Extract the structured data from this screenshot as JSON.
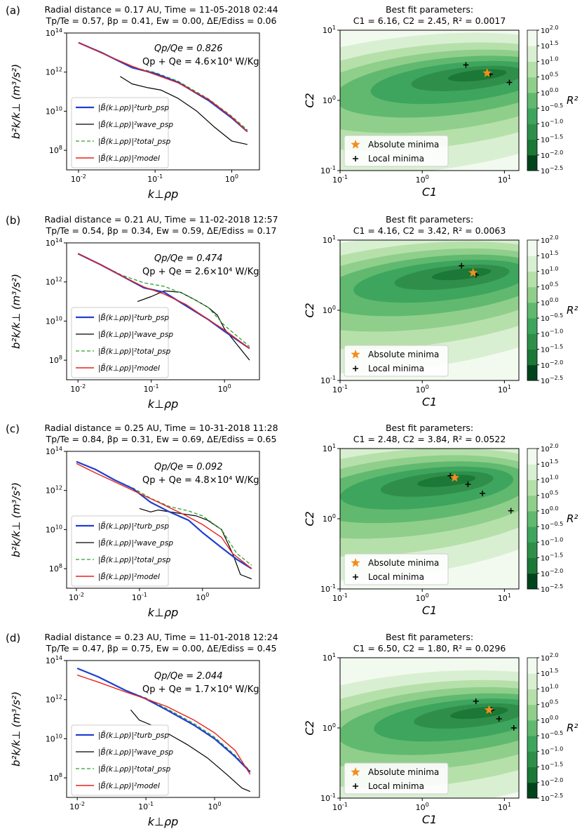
{
  "colors": {
    "turb": "#1f3fd1",
    "wave": "#000000",
    "total": "#2ca02c",
    "model": "#e8221c",
    "star": "#f28e1c",
    "contour": [
      "#00441b",
      "#1b7837",
      "#2f8f4a",
      "#3ea55e",
      "#60b96f",
      "#8fcf8b",
      "#b6e0aa",
      "#d9efd2",
      "#f2faef"
    ]
  },
  "legend_left": {
    "turb": "|B̃(k⊥ρp)|²turb_psp",
    "wave": "|B̃(k⊥ρp)|²wave_psp",
    "total": "|B̃(k⊥ρp)|²total_psp",
    "model": "|B̃(k⊥ρp)|²model"
  },
  "legend_right": {
    "absolute": "Absolute minima",
    "local": "Local minima"
  },
  "axis_labels": {
    "left_x": "k⊥ρp",
    "left_y": "b²k/k⊥ (m³/s²)",
    "right_x": "C1",
    "right_y": "C2",
    "colorbar": "R²"
  },
  "colorbar_ticks": [
    "10^2.0",
    "10^1.5",
    "10^1.0",
    "10^0.5",
    "10^0.0",
    "10^−0.5",
    "10^−1.0",
    "10^−1.5",
    "10^−2.0",
    "10^−2.5"
  ],
  "chart_data": [
    {
      "id": "a",
      "type": "line",
      "panel_label": "(a)",
      "title_line1": "Radial distance = 0.17 AU,    Time = 11-05-2018 02:44",
      "title_line2": "Tp/Te = 0.57,  βp = 0.41,  Ew = 0.00,  ΔE/Ediss = 0.06",
      "ratio_text": "Qp/Qe = 0.826",
      "heat_text": "Qp + Qe = 4.6×10⁴ W/Kg",
      "xlabel": "k⊥ρp",
      "ylabel": "b²k/k⊥ (m³/s²)",
      "xscale": "log",
      "yscale": "log",
      "xlim": [
        0.007,
        2.3
      ],
      "ylim": [
        10000000.0,
        100000000000000.0
      ],
      "xticks": [
        "10^-2",
        "10^-1",
        "10^0"
      ],
      "yticks": [
        "10^8",
        "10^10",
        "10^12",
        "10^14"
      ],
      "series": [
        {
          "name": "turb_psp",
          "x": [
            0.01,
            0.02,
            0.05,
            0.1,
            0.2,
            0.5,
            1.0,
            1.6
          ],
          "y": [
            32000000000000.0,
            10000000000000.0,
            1700000000000.0,
            850000000000.0,
            300000000000.0,
            35000000000.0,
            4500000000.0,
            900000000.0
          ]
        },
        {
          "name": "wave_psp",
          "x": [
            0.035,
            0.05,
            0.08,
            0.12,
            0.2,
            0.35,
            0.6,
            1.0,
            1.6
          ],
          "y": [
            600000000000.0,
            250000000000.0,
            160000000000.0,
            120000000000.0,
            45000000000.0,
            10000000000.0,
            1500000000.0,
            300000000.0,
            200000000.0
          ]
        },
        {
          "name": "total_psp",
          "x": [
            0.01,
            0.02,
            0.05,
            0.1,
            0.2,
            0.5,
            1.0,
            1.6
          ],
          "y": [
            32000000000000.0,
            10000000000000.0,
            1800000000000.0,
            950000000000.0,
            340000000000.0,
            42000000000.0,
            5500000000.0,
            1100000000.0
          ]
        },
        {
          "name": "model",
          "x": [
            0.01,
            0.02,
            0.05,
            0.1,
            0.2,
            0.5,
            1.0,
            1.6
          ],
          "y": [
            32000000000000.0,
            9500000000000.0,
            2000000000000.0,
            750000000000.0,
            280000000000.0,
            40000000000.0,
            5000000000.0,
            900000000.0
          ]
        }
      ],
      "fit": {
        "title_line1": "Best fit parameters:",
        "title_line2": "C1 = 6.16,   C2 = 2.45,   R² = 0.0017",
        "xlim": [
          0.1,
          15
        ],
        "ylim": [
          0.1,
          10
        ],
        "xticks": [
          "10^-1",
          "10^0",
          "10^1"
        ],
        "yticks": [
          "10^-1",
          "10^0",
          "10^1"
        ],
        "absolute_minimum": [
          6.16,
          2.45
        ],
        "local_minima": [
          [
            3.4,
            3.2
          ],
          [
            6.7,
            2.35
          ],
          [
            11.5,
            1.8
          ]
        ],
        "center": [
          6.2,
          2.5
        ],
        "shape": [
          0.4,
          0.25
        ]
      }
    },
    {
      "id": "b",
      "type": "line",
      "panel_label": "(b)",
      "title_line1": "Radial distance = 0.21 AU,    Time = 11-02-2018 12:57",
      "title_line2": "Tp/Te = 0.54,  βp = 0.34,  Ew = 0.59,  ΔE/Ediss = 0.17",
      "ratio_text": "Qp/Qe = 0.474",
      "heat_text": "Qp + Qe = 2.6×10⁴ W/Kg",
      "xlabel": "k⊥ρp",
      "ylabel": "b²k/k⊥ (m³/s²)",
      "xscale": "log",
      "yscale": "log",
      "xlim": [
        0.007,
        3.0
      ],
      "ylim": [
        10000000.0,
        100000000000000.0
      ],
      "xticks": [
        "10^-2",
        "10^-1",
        "10^0"
      ],
      "yticks": [
        "10^8",
        "10^10",
        "10^12",
        "10^14"
      ],
      "series": [
        {
          "name": "turb_psp",
          "x": [
            0.01,
            0.02,
            0.04,
            0.08,
            0.15,
            0.3,
            0.6,
            1.0,
            2.2
          ],
          "y": [
            28000000000000.0,
            8000000000000.0,
            2000000000000.0,
            500000000000.0,
            300000000000.0,
            60000000000.0,
            12000000000.0,
            3000000000.0,
            400000000.0
          ]
        },
        {
          "name": "wave_psp",
          "x": [
            0.065,
            0.1,
            0.15,
            0.25,
            0.4,
            0.6,
            0.8,
            1.0,
            1.5,
            2.2
          ],
          "y": [
            100000000000.0,
            180000000000.0,
            350000000000.0,
            300000000000.0,
            120000000000.0,
            50000000000.0,
            20000000000.0,
            4000000000.0,
            600000000.0,
            100000000.0
          ]
        },
        {
          "name": "total_psp",
          "x": [
            0.01,
            0.02,
            0.04,
            0.08,
            0.15,
            0.3,
            0.6,
            1.0,
            2.2
          ],
          "y": [
            28000000000000.0,
            8000000000000.0,
            2200000000000.0,
            900000000000.0,
            600000000000.0,
            220000000000.0,
            50000000000.0,
            6000000000.0,
            500000000.0
          ]
        },
        {
          "name": "model",
          "x": [
            0.01,
            0.02,
            0.04,
            0.08,
            0.15,
            0.3,
            0.6,
            1.0,
            2.2
          ],
          "y": [
            28000000000000.0,
            8000000000000.0,
            2000000000000.0,
            550000000000.0,
            240000000000.0,
            70000000000.0,
            12000000000.0,
            3500000000.0,
            400000000.0
          ]
        }
      ],
      "fit": {
        "title_line1": "Best fit parameters:",
        "title_line2": "C1 = 4.16,   C2 = 3.42,   R² = 0.0063",
        "xlim": [
          0.1,
          15
        ],
        "ylim": [
          0.1,
          10
        ],
        "xticks": [
          "10^-1",
          "10^0",
          "10^1"
        ],
        "yticks": [
          "10^-1",
          "10^0",
          "10^1"
        ],
        "absolute_minimum": [
          4.16,
          3.42
        ],
        "local_minima": [
          [
            3.0,
            4.3
          ],
          [
            4.5,
            3.2
          ]
        ],
        "center": [
          4.0,
          3.6
        ],
        "shape": [
          0.45,
          0.22
        ]
      }
    },
    {
      "id": "c",
      "type": "line",
      "panel_label": "(c)",
      "title_line1": "Radial distance = 0.25 AU,    Time = 10-31-2018 11:28",
      "title_line2": "Tp/Te = 0.84,  βp = 0.31,  Ew = 0.69,  ΔE/Ediss = 0.65",
      "ratio_text": "Qp/Qe = 0.092",
      "heat_text": "Qp + Qe = 4.8×10⁴ W/Kg",
      "xlabel": "k⊥ρp",
      "ylabel": "b²k/k⊥ (m³/s²)",
      "xscale": "log",
      "yscale": "log",
      "xlim": [
        0.007,
        8.0
      ],
      "ylim": [
        10000000.0,
        100000000000000.0
      ],
      "xticks": [
        "10^-2",
        "10^-1",
        "10^0"
      ],
      "yticks": [
        "10^8",
        "10^10",
        "10^12",
        "10^14"
      ],
      "series": [
        {
          "name": "turb_psp",
          "x": [
            0.01,
            0.02,
            0.04,
            0.08,
            0.15,
            0.3,
            0.6,
            1.0,
            2.0,
            3.5,
            6.0
          ],
          "y": [
            30000000000000.0,
            12000000000000.0,
            3500000000000.0,
            1200000000000.0,
            250000000000.0,
            80000000000.0,
            30000000000.0,
            7000000000.0,
            1200000000.0,
            300000000.0,
            100000000.0
          ]
        },
        {
          "name": "wave_psp",
          "x": [
            0.1,
            0.15,
            0.2,
            0.4,
            0.8,
            1.2,
            2.0,
            3.0,
            4.0,
            6.0
          ],
          "y": [
            120000000000.0,
            80000000000.0,
            100000000000.0,
            70000000000.0,
            50000000000.0,
            30000000000.0,
            10000000000.0,
            600000000.0,
            50000000.0,
            30000000.0
          ]
        },
        {
          "name": "total_psp",
          "x": [
            0.01,
            0.02,
            0.04,
            0.08,
            0.15,
            0.3,
            0.6,
            1.0,
            2.0,
            3.5,
            6.0
          ],
          "y": [
            30000000000000.0,
            12000000000000.0,
            3500000000000.0,
            1300000000000.0,
            400000000000.0,
            150000000000.0,
            90000000000.0,
            50000000000.0,
            10000000000.0,
            600000000.0,
            150000000.0
          ]
        },
        {
          "name": "model",
          "x": [
            0.01,
            0.02,
            0.05,
            0.1,
            0.2,
            0.5,
            1.0,
            2.0,
            3.0,
            6.0
          ],
          "y": [
            24000000000000.0,
            8000000000000.0,
            2000000000000.0,
            700000000000.0,
            250000000000.0,
            60000000000.0,
            18000000000.0,
            4000000000.0,
            600000000.0,
            100000000.0
          ]
        }
      ],
      "fit": {
        "title_line1": "Best fit parameters:",
        "title_line2": "C1 = 2.48,   C2 = 3.84,   R² = 0.0522",
        "xlim": [
          0.1,
          15
        ],
        "ylim": [
          0.1,
          10
        ],
        "xticks": [
          "10^-1",
          "10^0",
          "10^1"
        ],
        "yticks": [
          "10^-1",
          "10^0",
          "10^1"
        ],
        "absolute_minimum": [
          2.48,
          3.84
        ],
        "local_minima": [
          [
            2.2,
            4.1
          ],
          [
            3.6,
            3.1
          ],
          [
            5.4,
            2.3
          ],
          [
            12.0,
            1.3
          ]
        ],
        "center": [
          2.6,
          3.8
        ],
        "shape": [
          0.38,
          0.25
        ]
      }
    },
    {
      "id": "d",
      "type": "line",
      "panel_label": "(d)",
      "title_line1": "Radial distance = 0.23 AU,    Time = 11-01-2018 12:24",
      "title_line2": "Tp/Te = 0.47,  βp = 0.75,  Ew = 0.00,  ΔE/Ediss = 0.45",
      "ratio_text": "Qp/Qe = 2.044",
      "heat_text": "Qp + Qe = 1.7×10⁴ W/Kg",
      "xlabel": "k⊥ρp",
      "ylabel": "b²k/k⊥ (m³/s²)",
      "xscale": "log",
      "yscale": "log",
      "xlim": [
        0.007,
        4.5
      ],
      "ylim": [
        10000000.0,
        100000000000000.0
      ],
      "xticks": [
        "10^-2",
        "10^-1",
        "10^0"
      ],
      "yticks": [
        "10^8",
        "10^10",
        "10^12",
        "10^14"
      ],
      "series": [
        {
          "name": "turb_psp",
          "x": [
            0.01,
            0.02,
            0.05,
            0.1,
            0.2,
            0.5,
            1.0,
            2.0,
            3.3
          ],
          "y": [
            40000000000000.0,
            15000000000000.0,
            3000000000000.0,
            1100000000000.0,
            300000000000.0,
            50000000000.0,
            10000000000.0,
            1200000000.0,
            200000000.0
          ]
        },
        {
          "name": "wave_psp",
          "x": [
            0.06,
            0.08,
            0.12,
            0.2,
            0.4,
            0.8,
            1.5,
            2.5,
            3.3
          ],
          "y": [
            300000000000.0,
            90000000000.0,
            50000000000.0,
            20000000000.0,
            5000000000.0,
            1000000000.0,
            150000000.0,
            30000000.0,
            20000000.0
          ]
        },
        {
          "name": "total_psp",
          "x": [
            0.01,
            0.02,
            0.05,
            0.1,
            0.2,
            0.5,
            1.0,
            2.0,
            3.3
          ],
          "y": [
            40000000000000.0,
            15000000000000.0,
            3000000000000.0,
            1200000000000.0,
            350000000000.0,
            60000000000.0,
            12000000000.0,
            1400000000.0,
            220000000.0
          ]
        },
        {
          "name": "model",
          "x": [
            0.01,
            0.02,
            0.05,
            0.1,
            0.2,
            0.5,
            1.0,
            2.0,
            3.3
          ],
          "y": [
            18000000000000.0,
            8000000000000.0,
            2500000000000.0,
            1100000000000.0,
            450000000000.0,
            90000000000.0,
            20000000000.0,
            2500000000.0,
            150000000.0
          ]
        }
      ],
      "fit": {
        "title_line1": "Best fit parameters:",
        "title_line2": "C1 = 6.50,   C2 = 1.80,   R² = 0.0296",
        "xlim": [
          0.1,
          15
        ],
        "ylim": [
          0.1,
          10
        ],
        "xticks": [
          "10^-1",
          "10^0",
          "10^1"
        ],
        "yticks": [
          "10^-1",
          "10^0",
          "10^1"
        ],
        "absolute_minimum": [
          6.5,
          1.8
        ],
        "local_minima": [
          [
            4.5,
            2.4
          ],
          [
            7.0,
            1.8
          ],
          [
            8.6,
            1.35
          ],
          [
            13.0,
            1.0
          ]
        ],
        "center": [
          6.5,
          1.8
        ],
        "shape": [
          0.35,
          0.25
        ]
      }
    }
  ]
}
